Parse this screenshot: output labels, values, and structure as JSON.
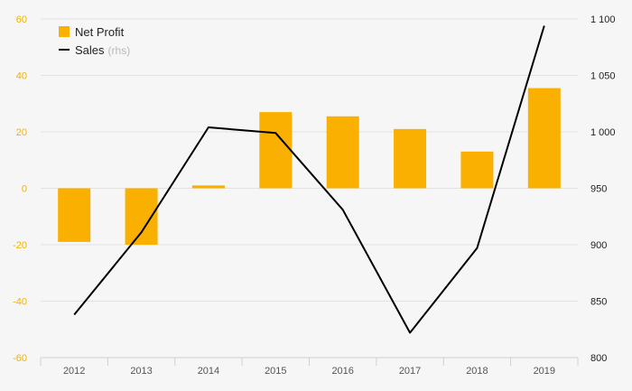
{
  "chart_data": {
    "type": "bar",
    "categories": [
      "2012",
      "2013",
      "2014",
      "2015",
      "2016",
      "2017",
      "2018",
      "2019"
    ],
    "series": [
      {
        "name": "Net Profit",
        "type": "bar",
        "axis": "left",
        "color": "#f9b000",
        "values": [
          -19,
          -20,
          1,
          27,
          25.5,
          21,
          13,
          35.5
        ]
      },
      {
        "name": "Sales",
        "type": "line",
        "axis": "right",
        "color": "#000000",
        "values": [
          838,
          911,
          1004,
          999,
          931,
          822,
          897,
          1094
        ]
      }
    ],
    "ylim_left": [
      -60,
      60
    ],
    "ylim_right": [
      800,
      1100
    ],
    "yticks_left": [
      "60",
      "40",
      "20",
      "0",
      "-20",
      "-40",
      "-60"
    ],
    "yticks_right": [
      "1 100",
      "1 050",
      "1 000",
      "950",
      "900",
      "850",
      "800"
    ],
    "legend": [
      {
        "label": "Net Profit",
        "suffix": ""
      },
      {
        "label": "Sales",
        "suffix": "(rhs)"
      }
    ],
    "legend_position": "top-left",
    "grid": true
  }
}
